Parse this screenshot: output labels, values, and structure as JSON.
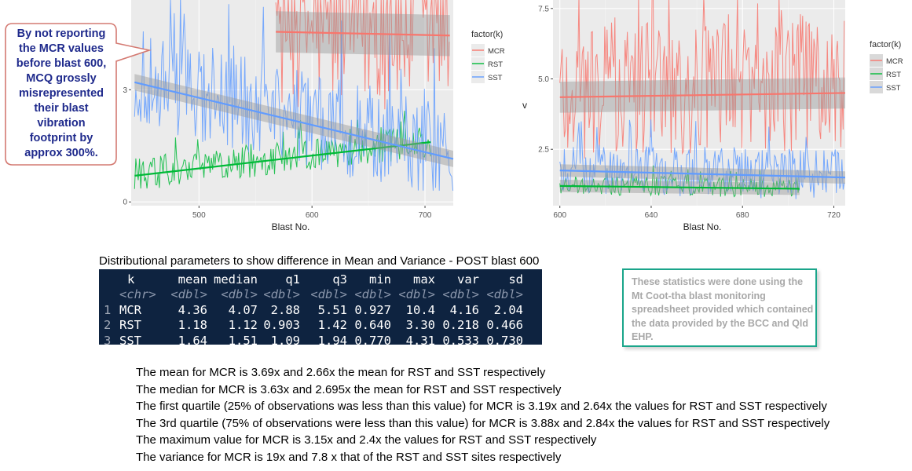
{
  "callout": {
    "lines": [
      "By not reporting",
      "the MCR values",
      "before blast 600,",
      "MCQ grossly",
      "misrepresented",
      "their blast",
      "vibration",
      "footprint by",
      "approx 300%."
    ]
  },
  "legend": {
    "title": "factor(k)",
    "items": [
      {
        "label": "MCR",
        "color": "#f8766d"
      },
      {
        "label": "RST",
        "color": "#00ba38"
      },
      {
        "label": "SST",
        "color": "#619cff"
      }
    ]
  },
  "chart_data": [
    {
      "type": "line",
      "xlabel": "Blast No.",
      "ylabel": "",
      "xlim": [
        440,
        725
      ],
      "ylim": [
        -0.1,
        5.4
      ],
      "x_ticks": [
        500,
        600,
        700
      ],
      "y_ticks": [
        0,
        3
      ],
      "grid": true,
      "legend_position": "right",
      "series": [
        {
          "name": "MCR",
          "x_range": [
            568,
            722
          ],
          "trend": [
            [
              568,
              4.55
            ],
            [
              722,
              4.45
            ]
          ],
          "ci_band": true
        },
        {
          "name": "RST",
          "x_range": [
            443,
            705
          ],
          "trend": [
            [
              443,
              0.7
            ],
            [
              705,
              1.6
            ]
          ]
        },
        {
          "name": "SST",
          "x_range": [
            443,
            725
          ],
          "trend": [
            [
              443,
              3.2
            ],
            [
              725,
              1.15
            ]
          ],
          "ci_band": true
        }
      ]
    },
    {
      "type": "line",
      "xlabel": "Blast No.",
      "ylabel": "v",
      "xlim": [
        597,
        725
      ],
      "ylim": [
        0.5,
        7.8
      ],
      "x_ticks": [
        600,
        640,
        680,
        720
      ],
      "y_ticks": [
        2.5,
        5.0,
        7.5
      ],
      "grid": true,
      "legend_position": "right",
      "series": [
        {
          "name": "MCR",
          "x_range": [
            600,
            725
          ],
          "trend": [
            [
              600,
              4.35
            ],
            [
              725,
              4.5
            ]
          ],
          "ci_band": true
        },
        {
          "name": "RST",
          "x_range": [
            600,
            705
          ],
          "trend": [
            [
              600,
              1.2
            ],
            [
              705,
              1.1
            ]
          ],
          "ci_band": true
        },
        {
          "name": "SST",
          "x_range": [
            600,
            725
          ],
          "trend": [
            [
              600,
              1.75
            ],
            [
              725,
              1.5
            ]
          ],
          "ci_band": true
        }
      ]
    },
    {
      "type": "table",
      "title": "Distributional parameters to show difference in Mean and Variance - POST blast 600",
      "columns": [
        "k",
        "mean",
        "median",
        "q1",
        "q3",
        "min",
        "max",
        "var",
        "sd"
      ],
      "types": [
        "<chr>",
        "<dbl>",
        "<dbl>",
        "<dbl>",
        "<dbl>",
        "<dbl>",
        "<dbl>",
        "<dbl>",
        "<dbl>"
      ],
      "rows": [
        {
          "n": "1",
          "cells": [
            "MCR",
            "4.36",
            "4.07",
            "2.88",
            "5.51",
            "0.927",
            "10.4",
            "4.16",
            "2.04"
          ]
        },
        {
          "n": "2",
          "cells": [
            "RST",
            "1.18",
            "1.12",
            "0.903",
            "1.42",
            "0.640",
            "3.30",
            "0.218",
            "0.466"
          ]
        },
        {
          "n": "3",
          "cells": [
            "SST",
            "1.64",
            "1.51",
            "1.09",
            "1.94",
            "0.770",
            "4.31",
            "0.533",
            "0.730"
          ]
        }
      ]
    }
  ],
  "note": "These statistics were done using the Mt Coot-tha blast monitoring spreadsheet provided which contained the data provided by the BCC and Qld EHP.",
  "findings": [
    "The mean for MCR is 3.69x and 2.66x the mean for RST and SST respectively",
    "The median for MCR is 3.63x and 2.695x the mean for RST and SST respectively",
    "The first quartile (25% of observations was less than this value) for MCR is 3.19x and 2.64x the values for RST and SST respectively",
    "The 3rd quartile (75% of observations were less than this value) for MCR is 3.88x and 2.84x the values for RST and SST respectively",
    "The maximum value for MCR is 3.15x and 2.4x the values for RST and SST respectively",
    "The variance for MCR is 19x and 7.8 x that of the RST and SST sites respectively"
  ]
}
